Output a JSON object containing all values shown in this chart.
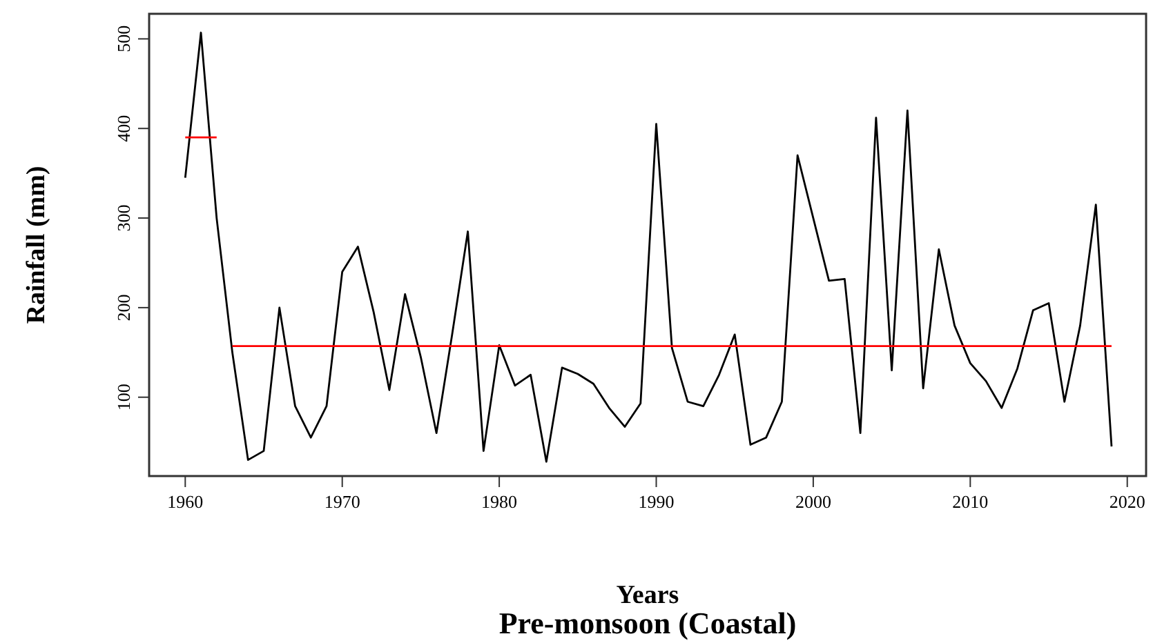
{
  "chart_data": {
    "type": "line",
    "title": "Pre-monsoon (Coastal)",
    "xlabel": "Years",
    "ylabel": "Rainfall (mm)",
    "xlim": [
      1957.7,
      2021.2
    ],
    "xticks": [
      1960,
      1970,
      1980,
      1990,
      2000,
      2010,
      2020
    ],
    "ylim": [
      12,
      528
    ],
    "yticks": [
      100,
      200,
      300,
      400,
      500
    ],
    "grid": false,
    "marker": "none",
    "line_style": "solid",
    "series": [
      {
        "color": "#000000",
        "x": [
          1960,
          1961,
          1962,
          1963,
          1964,
          1965,
          1966,
          1967,
          1968,
          1969,
          1970,
          1971,
          1972,
          1973,
          1974,
          1975,
          1976,
          1977,
          1978,
          1979,
          1980,
          1981,
          1982,
          1983,
          1984,
          1985,
          1986,
          1987,
          1988,
          1989,
          1990,
          1991,
          1992,
          1993,
          1994,
          1995,
          1996,
          1997,
          1998,
          1999,
          2000,
          2001,
          2002,
          2003,
          2004,
          2005,
          2006,
          2007,
          2008,
          2009,
          2010,
          2011,
          2012,
          2013,
          2014,
          2015,
          2016,
          2017,
          2018,
          2019
        ],
        "values": [
          345,
          507,
          300,
          150,
          30,
          40,
          200,
          90,
          55,
          90,
          240,
          268,
          195,
          108,
          215,
          145,
          60,
          170,
          285,
          40,
          158,
          113,
          125,
          28,
          133,
          126,
          115,
          88,
          67,
          93,
          405,
          155,
          95,
          90,
          125,
          170,
          47,
          55,
          95,
          370,
          300,
          230,
          232,
          60,
          412,
          130,
          420,
          110,
          265,
          180,
          138,
          118,
          88,
          132,
          197,
          205,
          95,
          180,
          315,
          45
        ]
      },
      {
        "color": "#ff0000",
        "x": [
          1960,
          1962
        ],
        "values": [
          390,
          390
        ]
      },
      {
        "color": "#ff0000",
        "x": [
          1963,
          2019
        ],
        "values": [
          157,
          157
        ]
      }
    ]
  }
}
